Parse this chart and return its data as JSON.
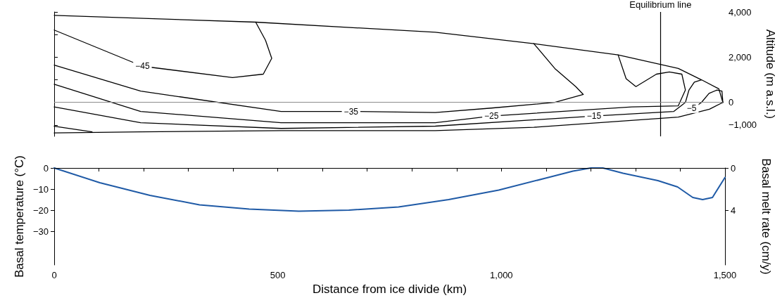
{
  "chart_data": [
    {
      "type": "line",
      "ylabel": "Altitude (m a.s.l.)",
      "xlim": [
        0,
        1500
      ],
      "ylim": [
        -1500,
        4000
      ],
      "yticks": [
        {
          "value": -1000,
          "label": "−1,000"
        },
        0,
        {
          "value": 1000,
          "label": null
        },
        {
          "value": 2000,
          "label": "2,000"
        },
        {
          "value": 3000,
          "label": null
        },
        {
          "value": 4000,
          "label": "4,000"
        }
      ],
      "tick_labels": "y",
      "marker": "none",
      "line_style": "solid",
      "series": [
        {
          "color": "#000000",
          "x": [
            0,
            452,
            855,
            1076,
            1265,
            1400,
            1452,
            1491,
            1500
          ],
          "values": [
            3850,
            3550,
            3100,
            2600,
            2100,
            1500,
            1000,
            600,
            0
          ]
        },
        {
          "color": "#000000",
          "x": [
            0,
            194,
            509,
            855,
            1076,
            1400,
            1470,
            1500
          ],
          "values": [
            -1350,
            -1300,
            -1250,
            -1250,
            -1100,
            -650,
            -300,
            0
          ]
        },
        {
          "color": "#000000",
          "x": [
            0,
            198,
            400,
            469,
            488,
            474,
            452
          ],
          "values": [
            3200,
            1600,
            1100,
            1250,
            1950,
            2750,
            3550
          ]
        },
        {
          "color": "#000000",
          "x": [
            0,
            194,
            509,
            666,
            855,
            981,
            1123,
            1187,
            1170,
            1123,
            1076
          ],
          "values": [
            1650,
            500,
            -400,
            -400,
            -450,
            -250,
            0,
            350,
            700,
            1500,
            2600
          ]
        },
        {
          "color": "#000000",
          "x": [
            0,
            194,
            509,
            855,
            981,
            1296,
            1400,
            1416,
            1408,
            1380,
            1351,
            1305,
            1283,
            1265
          ],
          "values": [
            800,
            -400,
            -900,
            -900,
            -600,
            -200,
            -150,
            550,
            1250,
            1350,
            1250,
            700,
            1050,
            2100
          ]
        },
        {
          "color": "#000000",
          "x": [
            0,
            194,
            509,
            855,
            1211,
            1390,
            1416,
            1424,
            1436,
            1452
          ],
          "values": [
            -200,
            -900,
            -1150,
            -1050,
            -600,
            -400,
            0,
            550,
            900,
            1000
          ]
        },
        {
          "color": "#000000",
          "x": [
            0,
            85
          ],
          "values": [
            -1050,
            -1300
          ]
        },
        {
          "color": "#000000",
          "x": [
            1419,
            1452,
            1469,
            1487,
            1498,
            1500
          ],
          "values": [
            -450,
            0,
            400,
            550,
            500,
            0
          ]
        }
      ],
      "ref_lines": [
        {
          "axis": "x",
          "value": 1360,
          "label": "Equilibrium line",
          "color": "#000000"
        },
        {
          "axis": "y",
          "value": 0,
          "color": "#8c8c8c"
        }
      ],
      "annotations": [
        {
          "text": "−45",
          "x": 198,
          "y": 1600
        },
        {
          "text": "−35",
          "x": 666,
          "y": -400
        },
        {
          "text": "−25",
          "x": 981,
          "y": -600
        },
        {
          "text": "−15",
          "x": 1211,
          "y": -600
        },
        {
          "text": "−5",
          "x": 1430,
          "y": -250
        }
      ]
    },
    {
      "type": "line",
      "xlabel": "Distance from ice divide (km)",
      "ylabel": "Basal temperature (°C)",
      "y2label": "Basal melt rate (cm/y)",
      "xlim": [
        0,
        1500
      ],
      "xticks": [
        0,
        {
          "value": 100,
          "label": null
        },
        {
          "value": 200,
          "label": null
        },
        {
          "value": 300,
          "label": null
        },
        {
          "value": 400,
          "label": null
        },
        500,
        {
          "value": 600,
          "label": null
        },
        {
          "value": 700,
          "label": null
        },
        {
          "value": 800,
          "label": null
        },
        {
          "value": 900,
          "label": null
        },
        {
          "value": 1000,
          "label": "1,000"
        },
        {
          "value": 1100,
          "label": null
        },
        {
          "value": 1200,
          "label": null
        },
        {
          "value": 1300,
          "label": null
        },
        {
          "value": 1400,
          "label": null
        },
        {
          "value": 1500,
          "label": "1,500"
        }
      ],
      "ylim": [
        -46,
        0
      ],
      "yticks": [
        {
          "value": -30,
          "label": "−30"
        },
        {
          "value": -20,
          "label": "−20"
        },
        {
          "value": -10,
          "label": "−10"
        },
        0
      ],
      "y2lim": [
        9.2,
        0
      ],
      "y2ticks": [
        0,
        4
      ],
      "marker": "none",
      "line_style": "solid",
      "series": [
        {
          "color": "#1f5aa6",
          "x": [
            0,
            102,
            214,
            325,
            436,
            547,
            659,
            770,
            882,
            994,
            1105,
            1160,
            1200,
            1227,
            1272,
            1350,
            1394,
            1428,
            1450,
            1472,
            1500
          ],
          "values": [
            0,
            -7,
            -13,
            -17.5,
            -19.5,
            -20.5,
            -20,
            -18.5,
            -15,
            -10.5,
            -4.5,
            -1.5,
            0,
            0,
            -2.5,
            -6,
            -9,
            -14,
            -15,
            -14,
            -4.5
          ]
        }
      ],
      "ref_lines": [
        {
          "axis": "y",
          "value": 0,
          "color": "#000000"
        }
      ]
    }
  ]
}
